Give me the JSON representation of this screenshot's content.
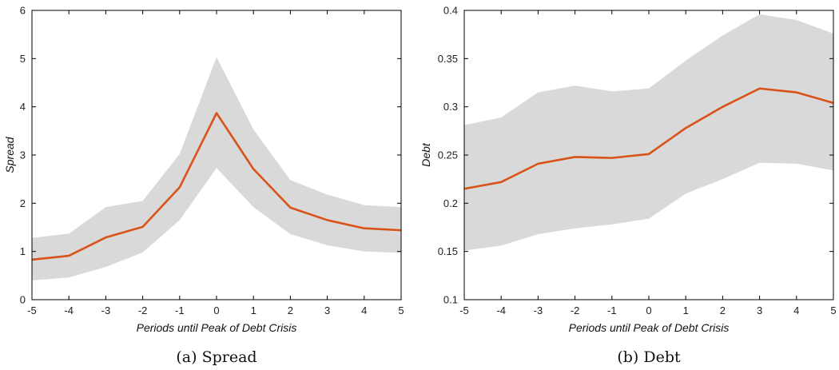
{
  "chart_data": [
    {
      "type": "line",
      "caption": "(a) Spread",
      "xlabel": "Periods until Peak of Debt Crisis",
      "ylabel": "Spread",
      "x": [
        -5,
        -4,
        -3,
        -2,
        -1,
        0,
        1,
        2,
        3,
        4,
        5
      ],
      "xlim": [
        -5,
        5
      ],
      "ylim": [
        0,
        6
      ],
      "xticks": [
        "-5",
        "-4",
        "-3",
        "-2",
        "-1",
        "0",
        "1",
        "2",
        "3",
        "4",
        "5"
      ],
      "yticks": [
        "0",
        "1",
        "2",
        "3",
        "4",
        "5",
        "6"
      ],
      "series": [
        {
          "color": "#d95319",
          "values": [
            0.83,
            0.91,
            1.29,
            1.51,
            2.33,
            3.87,
            2.71,
            1.91,
            1.65,
            1.48,
            1.44
          ]
        }
      ],
      "band": {
        "color": "#d9d9d9",
        "lower": [
          0.4,
          0.46,
          0.68,
          0.98,
          1.65,
          2.73,
          1.92,
          1.36,
          1.13,
          1.0,
          0.97
        ],
        "upper": [
          1.28,
          1.37,
          1.92,
          2.05,
          3.02,
          5.03,
          3.53,
          2.48,
          2.18,
          1.96,
          1.92
        ]
      },
      "grid": false
    },
    {
      "type": "line",
      "caption": "(b) Debt",
      "xlabel": "Periods until Peak of Debt Crisis",
      "ylabel": "Debt",
      "x": [
        -5,
        -4,
        -3,
        -2,
        -1,
        0,
        1,
        2,
        3,
        4,
        5
      ],
      "xlim": [
        -5,
        5
      ],
      "ylim": [
        0.1,
        0.4
      ],
      "xticks": [
        "-5",
        "-4",
        "-3",
        "-2",
        "-1",
        "0",
        "1",
        "2",
        "3",
        "4",
        "5"
      ],
      "yticks": [
        "0.1",
        "0.15",
        "0.2",
        "0.25",
        "0.3",
        "0.35",
        "0.4"
      ],
      "series": [
        {
          "color": "#d95319",
          "values": [
            0.215,
            0.222,
            0.241,
            0.248,
            0.247,
            0.251,
            0.278,
            0.3,
            0.319,
            0.315,
            0.304
          ]
        }
      ],
      "band": {
        "color": "#d9d9d9",
        "lower": [
          0.151,
          0.156,
          0.168,
          0.174,
          0.178,
          0.184,
          0.21,
          0.225,
          0.242,
          0.241,
          0.234
        ],
        "upper": [
          0.281,
          0.289,
          0.315,
          0.322,
          0.316,
          0.319,
          0.348,
          0.374,
          0.396,
          0.39,
          0.376
        ]
      },
      "grid": false
    }
  ]
}
